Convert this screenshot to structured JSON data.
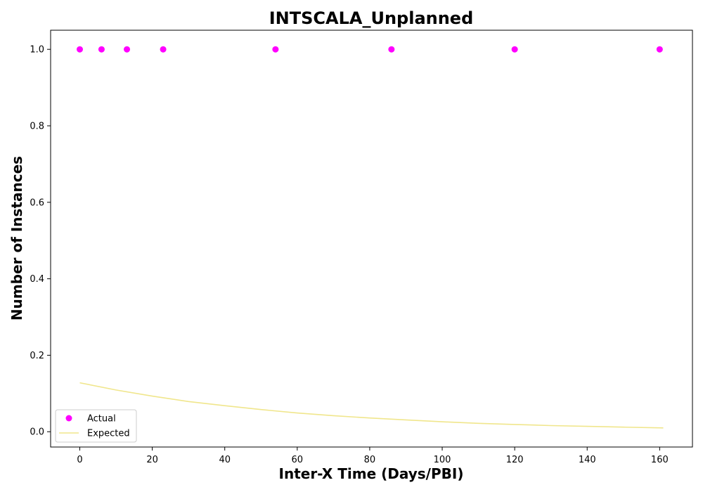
{
  "chart_data": {
    "type": "scatter",
    "title": "INTSCALA_Unplanned",
    "xlabel": "Inter-X Time (Days/PBI)",
    "ylabel": "Number of Instances",
    "xlim": [
      -8.05,
      169.05
    ],
    "ylim": [
      -0.04,
      1.05
    ],
    "xticks": [
      0,
      20,
      40,
      60,
      80,
      100,
      120,
      140,
      160
    ],
    "yticks": [
      0.0,
      0.2,
      0.4,
      0.6,
      0.8,
      1.0
    ],
    "xtick_labels": [
      "0",
      "20",
      "40",
      "60",
      "80",
      "100",
      "120",
      "140",
      "160"
    ],
    "ytick_labels": [
      "0.0",
      "0.2",
      "0.4",
      "0.6",
      "0.8",
      "1.0"
    ],
    "grid": false,
    "legend_position": "lower-left",
    "series": [
      {
        "name": "Actual",
        "kind": "scatter",
        "color": "#ff00ff",
        "x": [
          0,
          6,
          13,
          23,
          54,
          86,
          120,
          160
        ],
        "y": [
          1,
          1,
          1,
          1,
          1,
          1,
          1,
          1
        ]
      },
      {
        "name": "Expected",
        "kind": "line",
        "color": "#f0e68c",
        "x": [
          0,
          10,
          20,
          30,
          40,
          50,
          60,
          70,
          80,
          90,
          100,
          110,
          120,
          130,
          140,
          150,
          161
        ],
        "y": [
          0.128,
          0.109,
          0.093,
          0.079,
          0.068,
          0.058,
          0.049,
          0.042,
          0.036,
          0.031,
          0.026,
          0.022,
          0.019,
          0.016,
          0.014,
          0.012,
          0.01
        ]
      }
    ]
  }
}
